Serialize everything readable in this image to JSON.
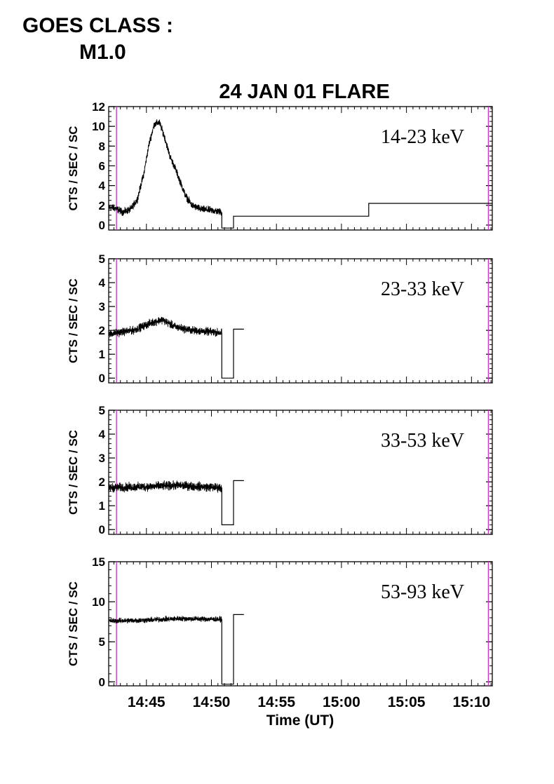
{
  "header": {
    "goes_line1": "GOES CLASS :",
    "goes_line2": "M1.0"
  },
  "chart_data": {
    "type": "line",
    "title": "24 JAN 01 FLARE",
    "xlabel": "Time (UT)",
    "x_tick_labels": [
      "14:45",
      "14:50",
      "14:55",
      "15:00",
      "15:05",
      "15:10"
    ],
    "x_ticks_min": [
      885,
      890,
      895,
      900,
      905,
      910
    ],
    "xlim_min": [
      882.1,
      911.6
    ],
    "marker_lines_min": [
      882.7,
      911.3
    ],
    "marker_color": "#cc33cc",
    "line_color": "#000000",
    "grid": false,
    "panels": [
      {
        "label": "14-23 keV",
        "ylabel": "CTS / SEC / SC",
        "ylim": [
          -0.5,
          12
        ],
        "yticks": [
          0,
          2,
          4,
          6,
          8,
          10,
          12
        ],
        "minor_step": 0.5,
        "noise": 0.55,
        "trend": [
          [
            882.1,
            1.8
          ],
          [
            882.6,
            1.7
          ],
          [
            883.2,
            1.3
          ],
          [
            883.8,
            1.6
          ],
          [
            884.3,
            2.6
          ],
          [
            884.8,
            5.2
          ],
          [
            885.2,
            8.2
          ],
          [
            885.6,
            10.2
          ],
          [
            886.0,
            10.4
          ],
          [
            886.4,
            8.9
          ],
          [
            886.8,
            7.0
          ],
          [
            887.2,
            5.8
          ],
          [
            887.6,
            4.4
          ],
          [
            888.0,
            3.0
          ],
          [
            888.5,
            2.0
          ],
          [
            889.2,
            1.6
          ],
          [
            890.0,
            1.5
          ],
          [
            890.8,
            1.3
          ]
        ],
        "steps": [
          [
            890.8,
            891.7,
            -0.3
          ],
          [
            891.7,
            902.1,
            0.9
          ],
          [
            902.1,
            911.6,
            2.2
          ]
        ]
      },
      {
        "label": "23-33 keV",
        "ylabel": "CTS / SEC / SC",
        "ylim": [
          -0.2,
          5
        ],
        "yticks": [
          0,
          1,
          2,
          3,
          4,
          5
        ],
        "minor_step": 0.2,
        "noise": 0.25,
        "trend": [
          [
            882.1,
            1.85
          ],
          [
            884.0,
            2.0
          ],
          [
            885.3,
            2.3
          ],
          [
            886.2,
            2.45
          ],
          [
            887.2,
            2.15
          ],
          [
            888.5,
            2.0
          ],
          [
            890.8,
            1.9
          ]
        ],
        "steps": [
          [
            890.8,
            891.7,
            0.0
          ],
          [
            891.7,
            892.5,
            2.05
          ]
        ]
      },
      {
        "label": "33-53 keV",
        "ylabel": "CTS / SEC / SC",
        "ylim": [
          -0.2,
          5
        ],
        "yticks": [
          0,
          1,
          2,
          3,
          4,
          5
        ],
        "minor_step": 0.2,
        "noise": 0.28,
        "trend": [
          [
            882.1,
            1.75
          ],
          [
            885.0,
            1.8
          ],
          [
            887.5,
            1.85
          ],
          [
            890.8,
            1.75
          ]
        ],
        "steps": [
          [
            890.8,
            891.7,
            0.2
          ],
          [
            891.7,
            892.5,
            2.05
          ]
        ]
      },
      {
        "label": "53-93 keV",
        "ylabel": "CTS / SEC / SC",
        "ylim": [
          -0.5,
          15
        ],
        "yticks": [
          0,
          5,
          10,
          15
        ],
        "minor_step": 1,
        "noise": 0.5,
        "trend": [
          [
            882.1,
            7.6
          ],
          [
            885.0,
            7.7
          ],
          [
            887.5,
            7.9
          ],
          [
            890.8,
            7.8
          ]
        ],
        "steps": [
          [
            890.8,
            891.7,
            -0.3
          ],
          [
            891.7,
            892.5,
            8.4
          ]
        ]
      }
    ]
  }
}
